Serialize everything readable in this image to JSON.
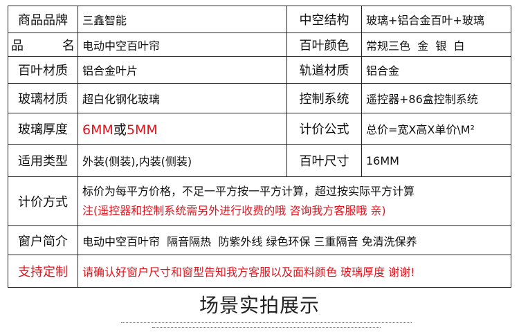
{
  "rows": [
    {
      "l1": "商品品牌",
      "v1": "三鑫智能",
      "l2": "中空结构",
      "v2": "玻璃+铝合金百叶+玻璃"
    },
    {
      "l1a": "品",
      "l1b": "名",
      "v1": "电动中空百叶帘",
      "l2": "百叶颜色",
      "v2": "常规三色  金  银  白"
    },
    {
      "l1": "百叶材质",
      "v1": "铝合金叶片",
      "l2": "轨道材质",
      "v2": "铝合金"
    },
    {
      "l1": "玻璃材质",
      "v1": "超白化钢化玻璃",
      "l2": "控制系统",
      "v2": "遥控器+86盒控制系统"
    },
    {
      "l1": "玻璃厚度",
      "v1a": "6MM",
      "v1b": "或",
      "v1c": "5MM",
      "l2": "计价公式",
      "v2": "总价=宽X高X单价\\M²"
    },
    {
      "l1": "适用类型",
      "v1": "外装(侧装),内装(侧装)",
      "l2": "百叶尺寸",
      "v2": "16MM"
    }
  ],
  "pricing": {
    "label": "计价方式",
    "line1": "标价为每平方价格，不足一平方按一平方计算，超过按实际平方计算",
    "line2": "注(遥控器和控制系统需另外进行收费的哦 咨询我方客服哦 亲)"
  },
  "intro": {
    "label": "窗户简介",
    "value": "电动中空百叶帘  隔音隔热  防紫外线 绿色环保 三重隔音 免清洗保养"
  },
  "custom": {
    "label": "支持定制",
    "value": "请确认好窗户尺寸和窗型告知我方客服以及面料颜色 玻璃厚度 谢谢!"
  },
  "section_title": "场景实拍展示",
  "colors": {
    "accent": "#e0141e",
    "border": "#222222"
  }
}
